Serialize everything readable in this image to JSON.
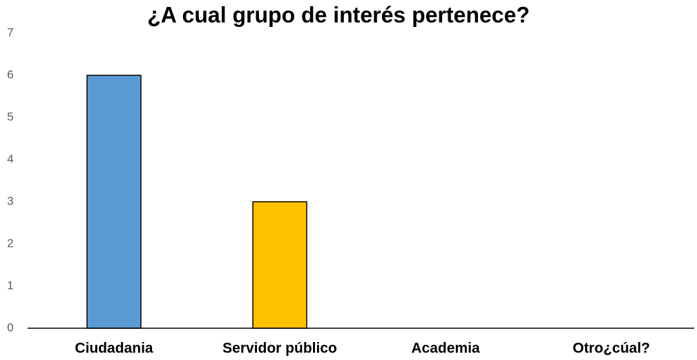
{
  "chart_data": {
    "type": "bar",
    "title": "¿A cual grupo de interés pertenece?",
    "categories": [
      "Ciudadania",
      "Servidor público",
      "Academia",
      "Otro¿cúal?"
    ],
    "values": [
      6,
      3,
      0,
      0
    ],
    "colors": [
      "#5b9bd5",
      "#ffc000",
      null,
      null
    ],
    "ylim": [
      0,
      7
    ],
    "yticks": [
      0,
      1,
      2,
      3,
      4,
      5,
      6,
      7
    ],
    "grid": false
  }
}
